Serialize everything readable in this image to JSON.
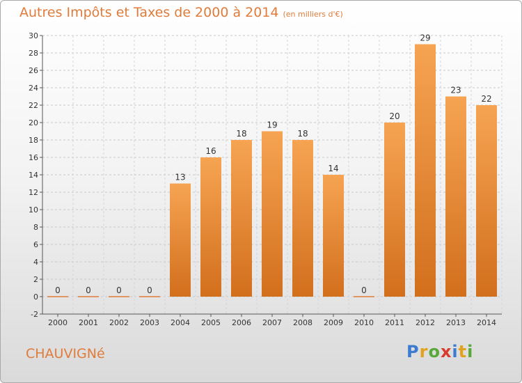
{
  "commune": "CHAUVIGNé",
  "logo": "Proxiti",
  "colors": {
    "accent": "#e07b3a",
    "bar_top": "#f6a452",
    "bar_bottom": "#d26f1d"
  },
  "chart_data": {
    "type": "bar",
    "title": "Autres Impôts et Taxes de 2000 à 2014",
    "subtitle": "(en milliers d'€)",
    "xlabel": "",
    "ylabel": "",
    "categories": [
      "2000",
      "2001",
      "2002",
      "2003",
      "2004",
      "2005",
      "2006",
      "2007",
      "2008",
      "2009",
      "2010",
      "2011",
      "2012",
      "2013",
      "2014"
    ],
    "values": [
      0,
      0,
      0,
      0,
      13,
      16,
      18,
      19,
      18,
      14,
      0,
      20,
      29,
      23,
      22
    ],
    "ylim": [
      -2,
      30
    ],
    "yticks": [
      -2,
      0,
      2,
      4,
      6,
      8,
      10,
      12,
      14,
      16,
      18,
      20,
      22,
      24,
      26,
      28,
      30
    ],
    "grid": "horizontal dashed"
  }
}
